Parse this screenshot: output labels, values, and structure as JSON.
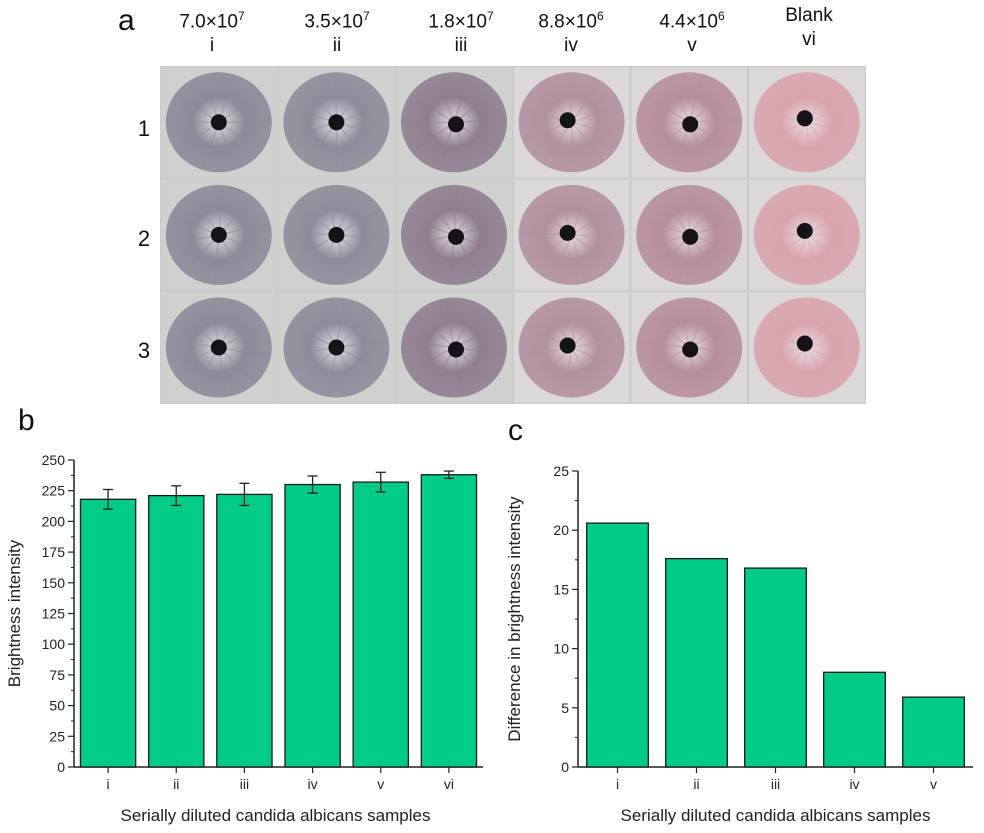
{
  "panel_a": {
    "letter": "a",
    "columns": [
      {
        "conc_base": "7.0×10",
        "conc_exp": "7",
        "id": "i"
      },
      {
        "conc_base": "3.5×10",
        "conc_exp": "7",
        "id": "ii"
      },
      {
        "conc_base": "1.8×10",
        "conc_exp": "7",
        "id": "iii"
      },
      {
        "conc_base": "8.8×10",
        "conc_exp": "6",
        "id": "iv"
      },
      {
        "conc_base": "4.4×10",
        "conc_exp": "6",
        "id": "v"
      },
      {
        "conc_base": "Blank",
        "conc_exp": "",
        "id": "vi"
      }
    ],
    "rows": [
      "1",
      "2",
      "3"
    ],
    "colors": {
      "i": "#8d8a99",
      "ii": "#8f8b9a",
      "iii": "#8f7e90",
      "iv": "#b2909f",
      "v": "#b68e9d",
      "vi": "#d9a3ab",
      "background": "#c9cbc8",
      "dot": "#151318"
    }
  },
  "chart_data": [
    {
      "panel": "b",
      "type": "bar",
      "categories": [
        "i",
        "ii",
        "iii",
        "iv",
        "v",
        "vi"
      ],
      "values": [
        218,
        221,
        222,
        230,
        232,
        238
      ],
      "errors": [
        8,
        8,
        9,
        7,
        8,
        3
      ],
      "xlabel": "Serially diluted candida albicans samples",
      "ylabel": "Brightness intensity",
      "ylim": [
        0,
        250
      ],
      "yticks": [
        0,
        25,
        50,
        75,
        100,
        125,
        150,
        175,
        200,
        225,
        250
      ],
      "grid": false,
      "bar_color": "#00cc88"
    },
    {
      "panel": "c",
      "type": "bar",
      "categories": [
        "i",
        "ii",
        "iii",
        "iv",
        "v"
      ],
      "values": [
        20.6,
        17.6,
        16.8,
        8.0,
        5.9
      ],
      "xlabel": "Serially diluted candida albicans samples",
      "ylabel": "Difference in brightness intensity",
      "ylim": [
        0,
        25
      ],
      "yticks": [
        0,
        5,
        10,
        15,
        20,
        25
      ],
      "grid": false,
      "bar_color": "#00cc88"
    }
  ]
}
